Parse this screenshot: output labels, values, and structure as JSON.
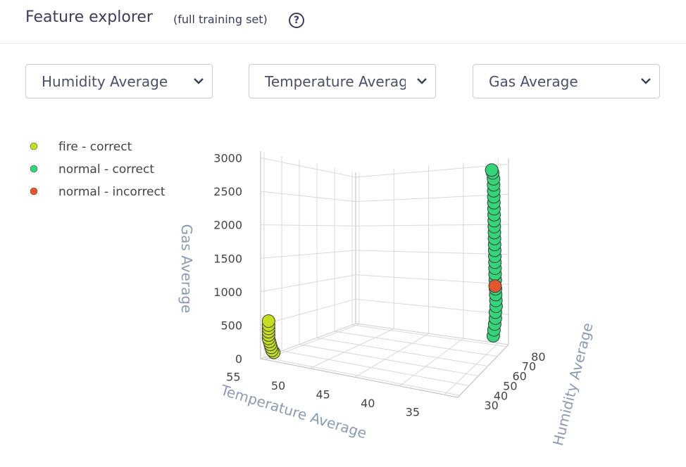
{
  "header": {
    "title": "Feature explorer",
    "subtitle": "(full training set)",
    "help": "?"
  },
  "controls": {
    "dropdowns": [
      "Humidity Average",
      "Temperature Average",
      "Gas Average"
    ]
  },
  "chart_data": {
    "type": "scatter3d",
    "xlabel": "Temperature Average",
    "ylabel": "Humidity Average",
    "zlabel": "Gas Average",
    "xlim": [
      55.5,
      33.5
    ],
    "ylim": [
      28,
      82
    ],
    "zlim": [
      0,
      3100
    ],
    "xticks": [
      55,
      50,
      45,
      40,
      35
    ],
    "yticks": [
      30,
      40,
      50,
      60,
      70,
      80
    ],
    "zticks": [
      0,
      500,
      1000,
      1500,
      2000,
      2500,
      3000
    ],
    "grid": true,
    "legend": "top-left",
    "series": [
      {
        "name": "fire - correct",
        "color": "#c5de1e",
        "x": [
          55,
          55,
          55,
          55,
          55,
          55,
          55,
          55,
          55,
          55,
          55
        ],
        "y": [
          33,
          32,
          31.5,
          31,
          30.5,
          30,
          30,
          30,
          30,
          30,
          30
        ],
        "z": [
          60,
          100,
          150,
          200,
          250,
          300,
          350,
          400,
          450,
          500,
          560
        ]
      },
      {
        "name": "normal - correct",
        "color": "#34d478",
        "x": [
          35.4,
          35.3,
          35.2,
          35.1,
          35.1,
          35,
          35,
          35,
          35,
          35,
          35,
          35,
          35,
          35,
          35,
          35,
          35,
          35,
          35,
          35,
          35,
          35,
          35,
          35,
          35,
          35,
          35,
          35.1,
          35.2
        ],
        "y": [
          80,
          80,
          80,
          80,
          80,
          80,
          79.8,
          79.6,
          79.4,
          79.2,
          79,
          78.9,
          78.8,
          78.7,
          78.6,
          78.5,
          78.4,
          78.3,
          78.2,
          78.1,
          78,
          77.9,
          77.8,
          77.7,
          77.6,
          77.5,
          77.4,
          77.3,
          77
        ],
        "z": [
          150,
          250,
          350,
          450,
          550,
          650,
          750,
          850,
          950,
          1100,
          1200,
          1300,
          1400,
          1500,
          1600,
          1700,
          1800,
          1900,
          2000,
          2100,
          2200,
          2300,
          2400,
          2500,
          2600,
          2700,
          2800,
          2900,
          2950
        ]
      },
      {
        "name": "normal - incorrect",
        "color": "#e4572e",
        "x": [
          35
        ],
        "y": [
          79
        ],
        "z": [
          1000
        ]
      }
    ]
  }
}
